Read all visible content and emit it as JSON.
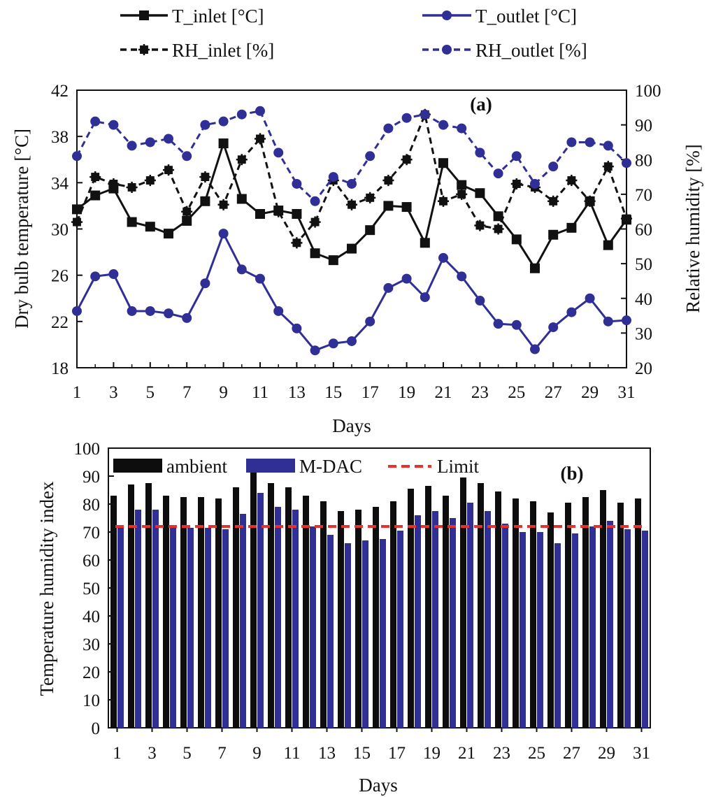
{
  "chart_data": [
    {
      "type": "line",
      "panel_label": "(a)",
      "xlabel": "Days",
      "ylabel": "Dry bulb temperature  [°C]",
      "y2label": "Relative  humidity  [%]",
      "x": [
        1,
        2,
        3,
        4,
        5,
        6,
        7,
        8,
        9,
        10,
        11,
        12,
        13,
        14,
        15,
        16,
        17,
        18,
        19,
        20,
        21,
        22,
        23,
        24,
        25,
        26,
        27,
        28,
        29,
        30,
        31
      ],
      "xlim": [
        1,
        31
      ],
      "x_ticks": [
        1,
        3,
        5,
        7,
        9,
        11,
        13,
        15,
        17,
        19,
        21,
        23,
        25,
        27,
        29,
        31
      ],
      "ylim": [
        18,
        42
      ],
      "y_ticks": [
        18,
        22,
        26,
        30,
        34,
        38,
        42
      ],
      "y2lim": [
        20,
        100
      ],
      "y2_ticks": [
        20,
        30,
        40,
        50,
        60,
        70,
        80,
        90,
        100
      ],
      "grid": false,
      "series": [
        {
          "name": "T_inlet [°C]",
          "axis": "left",
          "color": "#111111",
          "style": "solid",
          "marker": "square",
          "values": [
            31.7,
            32.9,
            33.5,
            30.6,
            30.2,
            29.6,
            30.7,
            32.4,
            37.4,
            32.6,
            31.3,
            31.6,
            31.3,
            27.9,
            27.3,
            28.3,
            29.9,
            32.0,
            31.9,
            28.8,
            35.7,
            33.8,
            33.1,
            31.1,
            29.1,
            26.6,
            29.5,
            30.1,
            32.4,
            28.6,
            30.8
          ]
        },
        {
          "name": "T_outlet [°C]",
          "axis": "left",
          "color": "#2f2f96",
          "style": "solid",
          "marker": "circle",
          "values": [
            22.9,
            25.9,
            26.1,
            22.9,
            22.9,
            22.7,
            22.3,
            25.3,
            29.6,
            26.5,
            25.7,
            22.9,
            21.4,
            19.5,
            20.1,
            20.3,
            22.0,
            24.9,
            25.7,
            24.1,
            27.5,
            25.9,
            23.8,
            21.8,
            21.7,
            19.6,
            21.5,
            22.8,
            24.0,
            22.0,
            22.1
          ]
        },
        {
          "name": "RH_inlet [%]",
          "axis": "right",
          "color": "#111111",
          "style": "dashed",
          "marker": "star",
          "values": [
            62,
            75,
            73,
            72,
            74,
            77,
            65,
            75,
            67,
            80,
            86,
            65,
            56,
            62,
            74,
            67,
            69,
            74,
            80,
            93,
            68,
            70,
            61,
            60,
            73,
            72,
            68,
            74,
            68,
            78,
            63
          ]
        },
        {
          "name": "RH_outlet [%]",
          "axis": "right",
          "color": "#2f2f96",
          "style": "dashed",
          "marker": "circle",
          "values": [
            81,
            91,
            90,
            84,
            85,
            86,
            81,
            90,
            91,
            93,
            94,
            82,
            73,
            68,
            75,
            73,
            81,
            89,
            92,
            93,
            90,
            89,
            82,
            76,
            81,
            73,
            78,
            85,
            85,
            84,
            79
          ]
        }
      ]
    },
    {
      "type": "bar",
      "panel_label": "(b)",
      "xlabel": "Days",
      "ylabel": "Temperature  humidity  index",
      "categories": [
        1,
        2,
        3,
        4,
        5,
        6,
        7,
        8,
        9,
        10,
        11,
        12,
        13,
        14,
        15,
        16,
        17,
        18,
        19,
        20,
        21,
        22,
        23,
        24,
        25,
        26,
        27,
        28,
        29,
        30,
        31
      ],
      "x_ticks": [
        1,
        3,
        5,
        7,
        9,
        11,
        13,
        15,
        17,
        19,
        21,
        23,
        25,
        27,
        29,
        31
      ],
      "ylim": [
        0,
        100
      ],
      "y_ticks": [
        0,
        10,
        20,
        30,
        40,
        50,
        60,
        70,
        80,
        90,
        100
      ],
      "grid": false,
      "series": [
        {
          "name": "ambient",
          "color": "#0d0d0d",
          "values": [
            83,
            87,
            87.5,
            83,
            82.5,
            82.5,
            82,
            86,
            92,
            87.5,
            86,
            83,
            81,
            77.5,
            78,
            79,
            81,
            85.5,
            86.5,
            83,
            89.5,
            87.5,
            84.5,
            82,
            81,
            77,
            80.5,
            82.5,
            85,
            80.5,
            82
          ]
        },
        {
          "name": "M-DAC",
          "color": "#2f2f96",
          "values": [
            72,
            78,
            78,
            71.5,
            71.5,
            71.5,
            71,
            76.5,
            84,
            79,
            78,
            72,
            69,
            66,
            67,
            67.5,
            70.5,
            76,
            77.5,
            75,
            80.5,
            77.5,
            73,
            70,
            70,
            66,
            69.5,
            72,
            74,
            71,
            70.5
          ]
        }
      ],
      "reference_line": {
        "name": "Limit",
        "value": 72,
        "color": "#e8312a",
        "style": "dashed"
      }
    }
  ]
}
